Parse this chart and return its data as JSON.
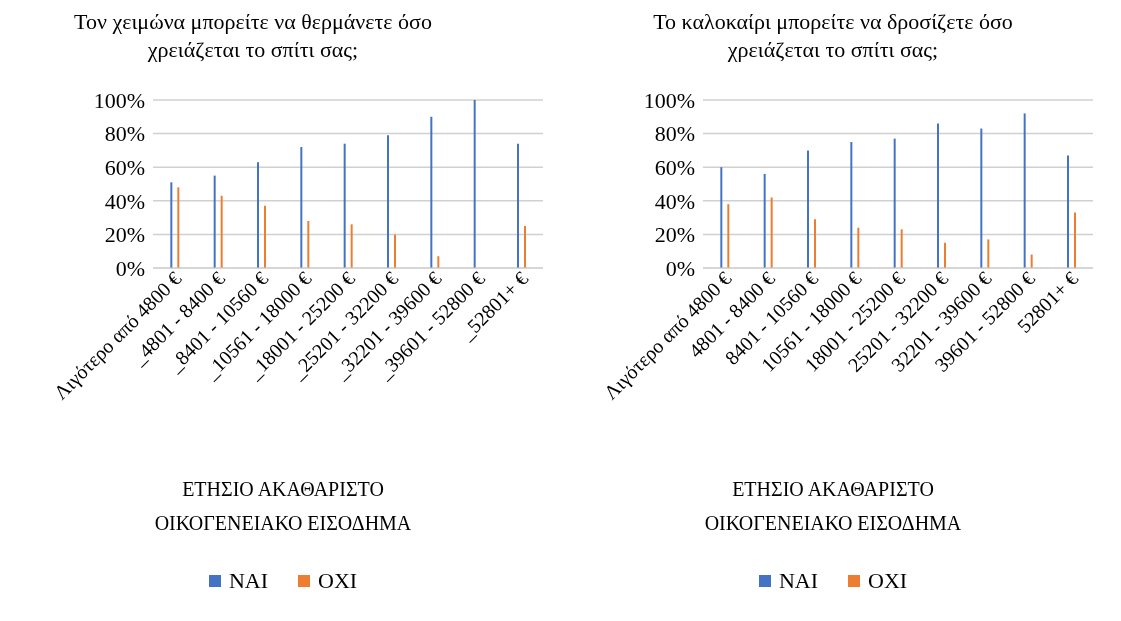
{
  "chart_data": [
    {
      "type": "bar",
      "title": "Τον χειμώνα μπορείτε να θερμάνετε όσο χρειάζεται το σπίτι σας;",
      "xlabel": "ΕΤΗΣΙΟ ΑΚΑΘΑΡΙΣΤΟ ΟΙΚΟΓΕΝΕΙΑΚΟ ΕΙΣΟΔΗΜΑ",
      "categories": [
        "Λιγότερο από 4800 €",
        "_4801 - 8400 €",
        "_8401 - 10560 €",
        "_10561 - 18000 €",
        "_18001 - 25200 €",
        "_25201 - 32200 €",
        "_32201 - 39600 €",
        "_39601 - 52800 €",
        "_52801+ €"
      ],
      "series": [
        {
          "name": "ΝΑΙ",
          "color": "#4472c4",
          "values": [
            51,
            55,
            63,
            72,
            74,
            79,
            90,
            100,
            74
          ]
        },
        {
          "name": "ΟΧΙ",
          "color": "#ed7d31",
          "values": [
            48,
            43,
            37,
            28,
            26,
            20,
            7,
            0,
            25
          ]
        }
      ],
      "ylim": [
        0,
        100
      ],
      "yticks": [
        {
          "value": 0,
          "label": "0%"
        },
        {
          "value": 20,
          "label": "20%"
        },
        {
          "value": 40,
          "label": "40%"
        },
        {
          "value": 60,
          "label": "60%"
        },
        {
          "value": 80,
          "label": "80%"
        },
        {
          "value": 100,
          "label": "100%"
        }
      ],
      "grid": "y",
      "legend": "bottom"
    },
    {
      "type": "bar",
      "title": "Το καλοκαίρι μπορείτε να δροσίζετε όσο χρειάζεται το σπίτι σας;",
      "xlabel": "ΕΤΗΣΙΟ ΑΚΑΘΑΡΙΣΤΟ ΟΙΚΟΓΕΝΕΙΑΚΟ ΕΙΣΟΔΗΜΑ",
      "categories": [
        "Λιγότερο από 4800 €",
        "4801 - 8400 €",
        "8401 - 10560 €",
        "10561 - 18000 €",
        "18001 - 25200 €",
        "25201 - 32200 €",
        "32201 - 39600 €",
        "39601 - 52800 €",
        "52801+ €"
      ],
      "series": [
        {
          "name": "ΝΑΙ",
          "color": "#4472c4",
          "values": [
            60,
            56,
            70,
            75,
            77,
            86,
            83,
            92,
            67
          ]
        },
        {
          "name": "ΟΧΙ",
          "color": "#ed7d31",
          "values": [
            38,
            42,
            29,
            24,
            23,
            15,
            17,
            8,
            33
          ]
        }
      ],
      "ylim": [
        0,
        100
      ],
      "yticks": [
        {
          "value": 0,
          "label": "0%"
        },
        {
          "value": 20,
          "label": "20%"
        },
        {
          "value": 40,
          "label": "40%"
        },
        {
          "value": 60,
          "label": "60%"
        },
        {
          "value": 80,
          "label": "80%"
        },
        {
          "value": 100,
          "label": "100%"
        }
      ],
      "grid": "y",
      "legend": "bottom"
    }
  ]
}
